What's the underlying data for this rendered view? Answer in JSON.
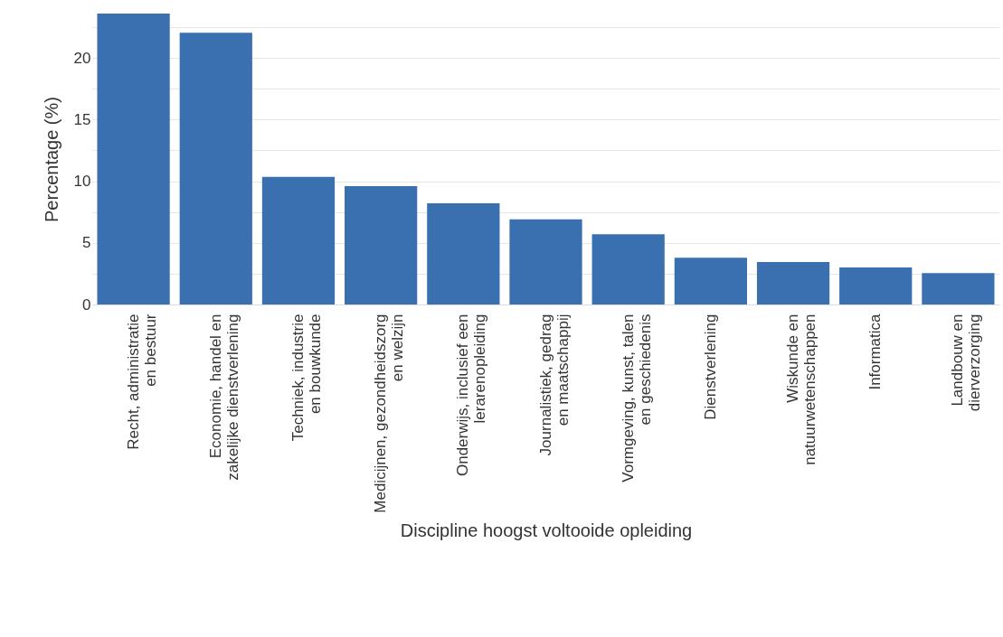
{
  "chart_data": {
    "type": "bar",
    "xlabel": "Discipline hoogst voltooide opleiding",
    "ylabel": "Percentage (%)",
    "categories": [
      "Recht, administratie\nen bestuur",
      "Economie, handel en\nzakelijke dienstverlening",
      "Techniek, industrie\nen bouwkunde",
      "Medicijnen, gezondheidszorg\nen welzijn",
      "Onderwijs, inclusief een\nlerarenopleiding",
      "Journalistiek, gedrag\nen maatschappij",
      "Vormgeving, kunst, talen\nen geschiedenis",
      "Dienstverlening",
      "Wiskunde en\nnatuurwetenschappen",
      "Informatica",
      "Landbouw en\ndierverzorging"
    ],
    "values": [
      23.6,
      22.05,
      10.35,
      9.6,
      8.2,
      6.9,
      5.7,
      3.8,
      3.45,
      3.0,
      2.55
    ],
    "color": "#3a70b0",
    "ylim": [
      0,
      23.6
    ],
    "yticks": [
      0,
      {
        "value": 2.5,
        "label": null
      },
      5,
      {
        "value": 7.5,
        "label": null
      },
      10,
      {
        "value": 12.5,
        "label": null
      },
      15,
      {
        "value": 17.5,
        "label": null
      },
      20,
      {
        "value": 22.5,
        "label": null
      }
    ],
    "grid": "y"
  }
}
